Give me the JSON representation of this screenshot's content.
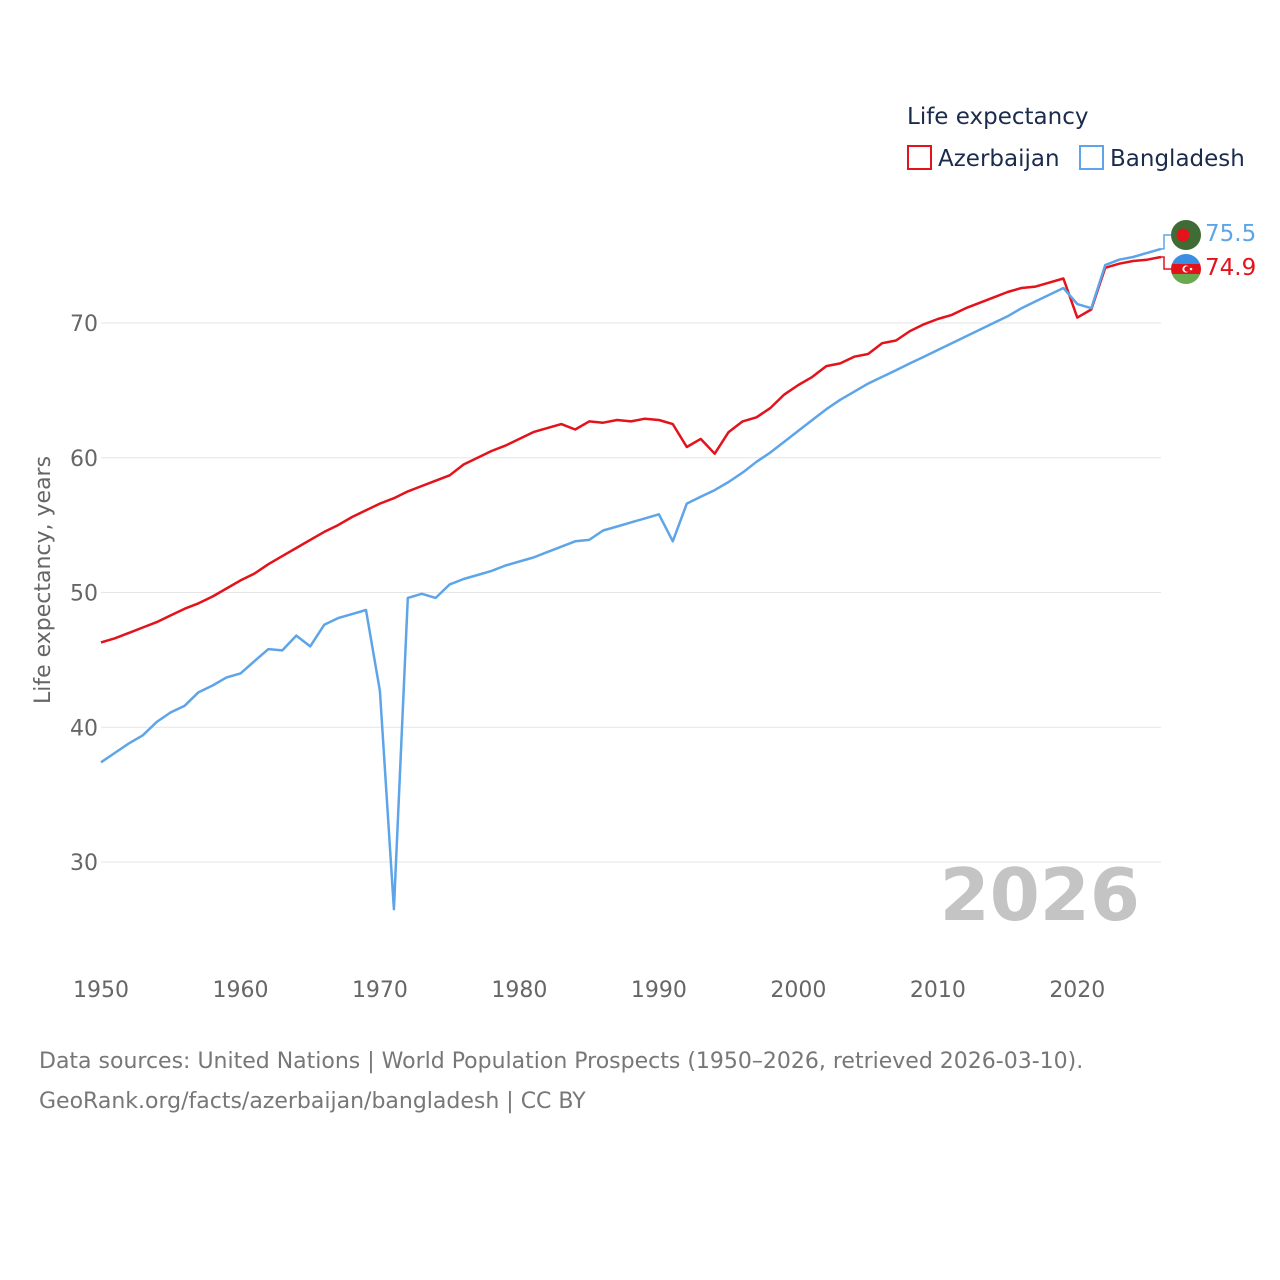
{
  "chart_data": {
    "type": "line",
    "legend_title": "Life expectancy",
    "ylabel": "Life expectancy, years",
    "xlim": [
      1950,
      2026
    ],
    "ylim": [
      24,
      77.5
    ],
    "y_ticks": [
      "30",
      "40",
      "50",
      "60",
      "70"
    ],
    "y_tick_values": [
      30,
      40,
      50,
      60,
      70
    ],
    "x_ticks": [
      "1950",
      "1960",
      "1970",
      "1980",
      "1990",
      "2000",
      "2010",
      "2020"
    ],
    "x_tick_values": [
      1950,
      1960,
      1970,
      1980,
      1990,
      2000,
      2010,
      2020
    ],
    "year_display": "2026",
    "x": [
      1950,
      1951,
      1952,
      1953,
      1954,
      1955,
      1956,
      1957,
      1958,
      1959,
      1960,
      1961,
      1962,
      1963,
      1964,
      1965,
      1966,
      1967,
      1968,
      1969,
      1970,
      1971,
      1972,
      1973,
      1974,
      1975,
      1976,
      1977,
      1978,
      1979,
      1980,
      1981,
      1982,
      1983,
      1984,
      1985,
      1986,
      1987,
      1988,
      1989,
      1990,
      1991,
      1992,
      1993,
      1994,
      1995,
      1996,
      1997,
      1998,
      1999,
      2000,
      2001,
      2002,
      2003,
      2004,
      2005,
      2006,
      2007,
      2008,
      2009,
      2010,
      2011,
      2012,
      2013,
      2014,
      2015,
      2016,
      2017,
      2018,
      2019,
      2020,
      2021,
      2022,
      2023,
      2024,
      2025,
      2026
    ],
    "series": [
      {
        "name": "Azerbaijan",
        "color": "#e3121b",
        "end_label": "74.9",
        "values": [
          46.3,
          46.6,
          47.0,
          47.4,
          47.8,
          48.3,
          48.8,
          49.2,
          49.7,
          50.3,
          50.9,
          51.4,
          52.1,
          52.7,
          53.3,
          53.9,
          54.5,
          55.0,
          55.6,
          56.1,
          56.6,
          57.0,
          57.5,
          57.9,
          58.3,
          58.7,
          59.5,
          60.0,
          60.5,
          60.9,
          61.4,
          61.9,
          62.2,
          62.5,
          62.1,
          62.7,
          62.6,
          62.8,
          62.7,
          62.9,
          62.8,
          62.5,
          60.8,
          61.4,
          60.3,
          61.9,
          62.7,
          63.0,
          63.7,
          64.7,
          65.4,
          66.0,
          66.8,
          67.0,
          67.5,
          67.7,
          68.5,
          68.7,
          69.4,
          69.9,
          70.3,
          70.6,
          71.1,
          71.5,
          71.9,
          72.3,
          72.6,
          72.7,
          73.0,
          73.3,
          70.4,
          71.0,
          74.1,
          74.4,
          74.6,
          74.7,
          74.9
        ]
      },
      {
        "name": "Bangladesh",
        "color": "#5da5e8",
        "end_label": "75.5",
        "values": [
          37.4,
          38.1,
          38.8,
          39.4,
          40.4,
          41.1,
          41.6,
          42.6,
          43.1,
          43.7,
          44.0,
          44.9,
          45.8,
          45.7,
          46.8,
          46.0,
          47.6,
          48.1,
          48.4,
          48.7,
          42.7,
          26.5,
          49.6,
          49.9,
          49.6,
          50.6,
          51.0,
          51.3,
          51.6,
          52.0,
          52.3,
          52.6,
          53.0,
          53.4,
          53.8,
          53.9,
          54.6,
          54.9,
          55.2,
          55.5,
          55.8,
          53.8,
          56.6,
          57.1,
          57.6,
          58.2,
          58.9,
          59.7,
          60.4,
          61.2,
          62.0,
          62.8,
          63.6,
          64.3,
          64.9,
          65.5,
          66.0,
          66.5,
          67.0,
          67.5,
          68.0,
          68.5,
          69.0,
          69.5,
          70.0,
          70.5,
          71.1,
          71.6,
          72.1,
          72.6,
          71.4,
          71.1,
          74.3,
          74.7,
          74.9,
          75.2,
          75.5
        ]
      }
    ]
  },
  "source": {
    "line1": "Data sources: United Nations | World Population Prospects (1950–2026, retrieved 2026-03-10).",
    "line2": "GeoRank.org/facts/azerbaijan/bangladesh | CC BY"
  }
}
